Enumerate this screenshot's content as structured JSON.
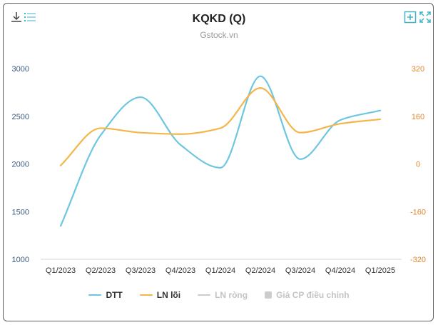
{
  "header": {
    "title": "KQKD (Q)",
    "subtitle": "Gstock.vn",
    "toolbar": {
      "download_icon": "download-icon",
      "menu_icon": "list-icon",
      "zoom_icon": "plus-square-icon",
      "fullscreen_icon": "expand-icon",
      "icon_color": "#3fb6c6"
    }
  },
  "chart_data": {
    "type": "line",
    "title": "KQKD (Q)",
    "subtitle": "Gstock.vn",
    "categories": [
      "Q1/2023",
      "Q2/2023",
      "Q3/2023",
      "Q4/2023",
      "Q1/2024",
      "Q2/2024",
      "Q3/2024",
      "Q4/2024",
      "Q1/2025"
    ],
    "y_left": {
      "min": 1000,
      "max": 3000,
      "ticks": [
        "1000",
        "1500",
        "2000",
        "2500",
        "3000"
      ],
      "color": "#3d5a80"
    },
    "y_right": {
      "min": -320,
      "max": 320,
      "ticks": [
        "-320",
        "-160",
        "0",
        "160",
        "320"
      ],
      "color": "#e3872e"
    },
    "grid": "horizontal-baseline-only",
    "legend_position": "bottom-center",
    "series": [
      {
        "name": "DTT",
        "axis": "left",
        "color": "#6ec6e0",
        "values": [
          1350,
          2300,
          2700,
          2200,
          1960,
          2920,
          2050,
          2460,
          2560
        ]
      },
      {
        "name": "LN lõi",
        "axis": "right",
        "color": "#f4b54a",
        "values": [
          -5,
          120,
          105,
          100,
          120,
          255,
          105,
          135,
          150
        ]
      }
    ],
    "inactive_series": [
      {
        "name": "LN ròng",
        "color": "#cccccc",
        "marker": "line"
      },
      {
        "name": "Giá CP điều chỉnh",
        "color": "#cccccc",
        "marker": "box"
      }
    ]
  }
}
